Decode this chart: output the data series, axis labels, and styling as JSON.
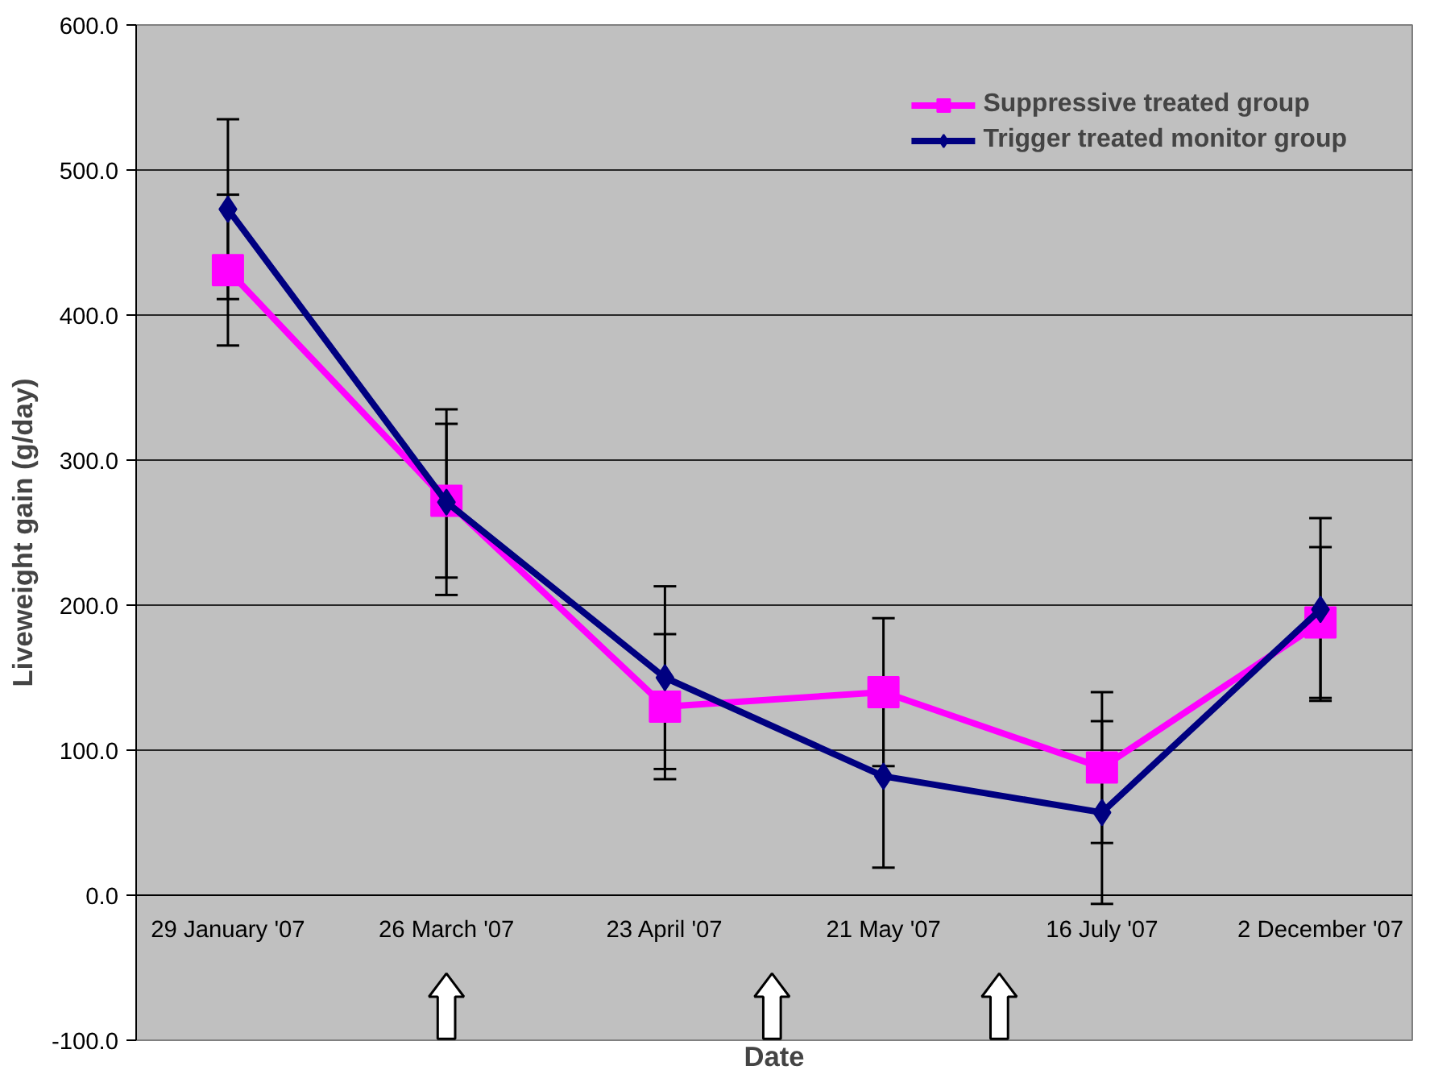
{
  "chart_data": {
    "type": "line",
    "xlabel": "Date",
    "ylabel": "Liveweight gain (g/day)",
    "categories": [
      "29 January '07",
      "26 March '07",
      "23 April '07",
      "21 May '07",
      "16 July '07",
      "2 December '07"
    ],
    "series": [
      {
        "name": "Suppressive treated group",
        "color": "#ff00ff",
        "marker": "square",
        "values": [
          431,
          272,
          130,
          140,
          88,
          188
        ],
        "errors": [
          52,
          53,
          50,
          51,
          52,
          52
        ]
      },
      {
        "name": "Trigger treated monitor group",
        "color": "#000080",
        "marker": "diamond",
        "values": [
          473,
          271,
          150,
          82,
          57,
          197
        ],
        "errors": [
          62,
          64,
          63,
          63,
          63,
          63
        ]
      }
    ],
    "ylim": [
      -100,
      600
    ],
    "yticks": [
      {
        "value": -100,
        "label": "-100.0"
      },
      {
        "value": 0,
        "label": "0.0"
      },
      {
        "value": 100,
        "label": "100.0"
      },
      {
        "value": 200,
        "label": "200.0"
      },
      {
        "value": 300,
        "label": "300.0"
      },
      {
        "value": 400,
        "label": "400.0"
      },
      {
        "value": 500,
        "label": "500.0"
      },
      {
        "value": 600,
        "label": "600.0"
      }
    ],
    "grid": "y",
    "legend": "top right",
    "line_style": "solid"
  }
}
